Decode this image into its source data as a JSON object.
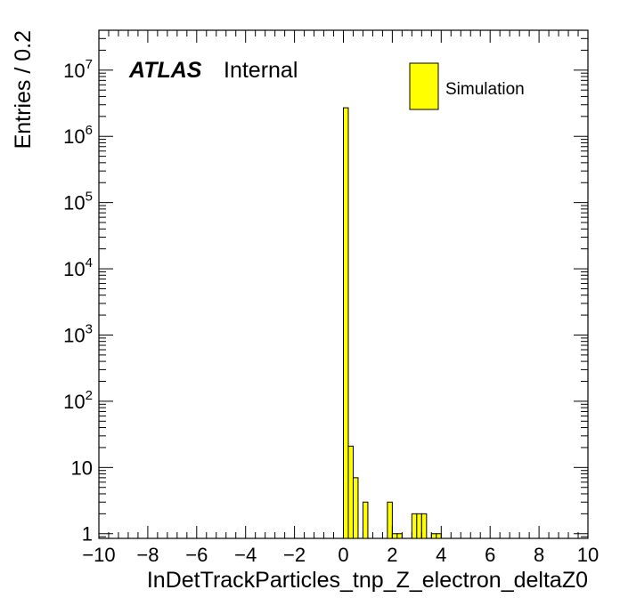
{
  "chart_data": {
    "type": "bar",
    "xlabel": "InDetTrackParticles_tnp_Z_electron_deltaZ0",
    "ylabel": "Entries / 0.2",
    "xlim": [
      -10,
      10
    ],
    "ylim": [
      0.85,
      40000000
    ],
    "yscale": "log",
    "grid": false,
    "legend_position": "top-right",
    "bar_color": "#ffff00",
    "x_ticks": [
      -10,
      -8,
      -6,
      -4,
      -2,
      0,
      2,
      4,
      6,
      8,
      10
    ],
    "x_tick_labels": [
      "−10",
      "−8",
      "−6",
      "−4",
      "−2",
      "0",
      "2",
      "4",
      "6",
      "8",
      "10"
    ],
    "y_ticks": [
      {
        "value": 1,
        "base": "1",
        "exp": ""
      },
      {
        "value": 10,
        "base": "10",
        "exp": ""
      },
      {
        "value": 100,
        "base": "10",
        "exp": "2"
      },
      {
        "value": 1000,
        "base": "10",
        "exp": "3"
      },
      {
        "value": 10000,
        "base": "10",
        "exp": "4"
      },
      {
        "value": 100000,
        "base": "10",
        "exp": "5"
      },
      {
        "value": 1000000,
        "base": "10",
        "exp": "6"
      },
      {
        "value": 10000000,
        "base": "10",
        "exp": "7"
      }
    ],
    "series": [
      {
        "name": "Simulation",
        "bins": [
          {
            "x0": 0.0,
            "x1": 0.2,
            "value": 2700000
          },
          {
            "x0": 0.2,
            "x1": 0.4,
            "value": 21
          },
          {
            "x0": 0.4,
            "x1": 0.6,
            "value": 7
          },
          {
            "x0": 0.8,
            "x1": 1.0,
            "value": 3
          },
          {
            "x0": 1.8,
            "x1": 2.0,
            "value": 3
          },
          {
            "x0": 2.0,
            "x1": 2.2,
            "value": 1
          },
          {
            "x0": 2.2,
            "x1": 2.4,
            "value": 1
          },
          {
            "x0": 2.8,
            "x1": 3.0,
            "value": 2
          },
          {
            "x0": 3.0,
            "x1": 3.2,
            "value": 2
          },
          {
            "x0": 3.2,
            "x1": 3.4,
            "value": 2
          },
          {
            "x0": 3.6,
            "x1": 3.8,
            "value": 1
          },
          {
            "x0": 3.8,
            "x1": 4.0,
            "value": 1
          }
        ]
      }
    ],
    "annotation": {
      "experiment": "ATLAS",
      "status": "Internal"
    }
  }
}
